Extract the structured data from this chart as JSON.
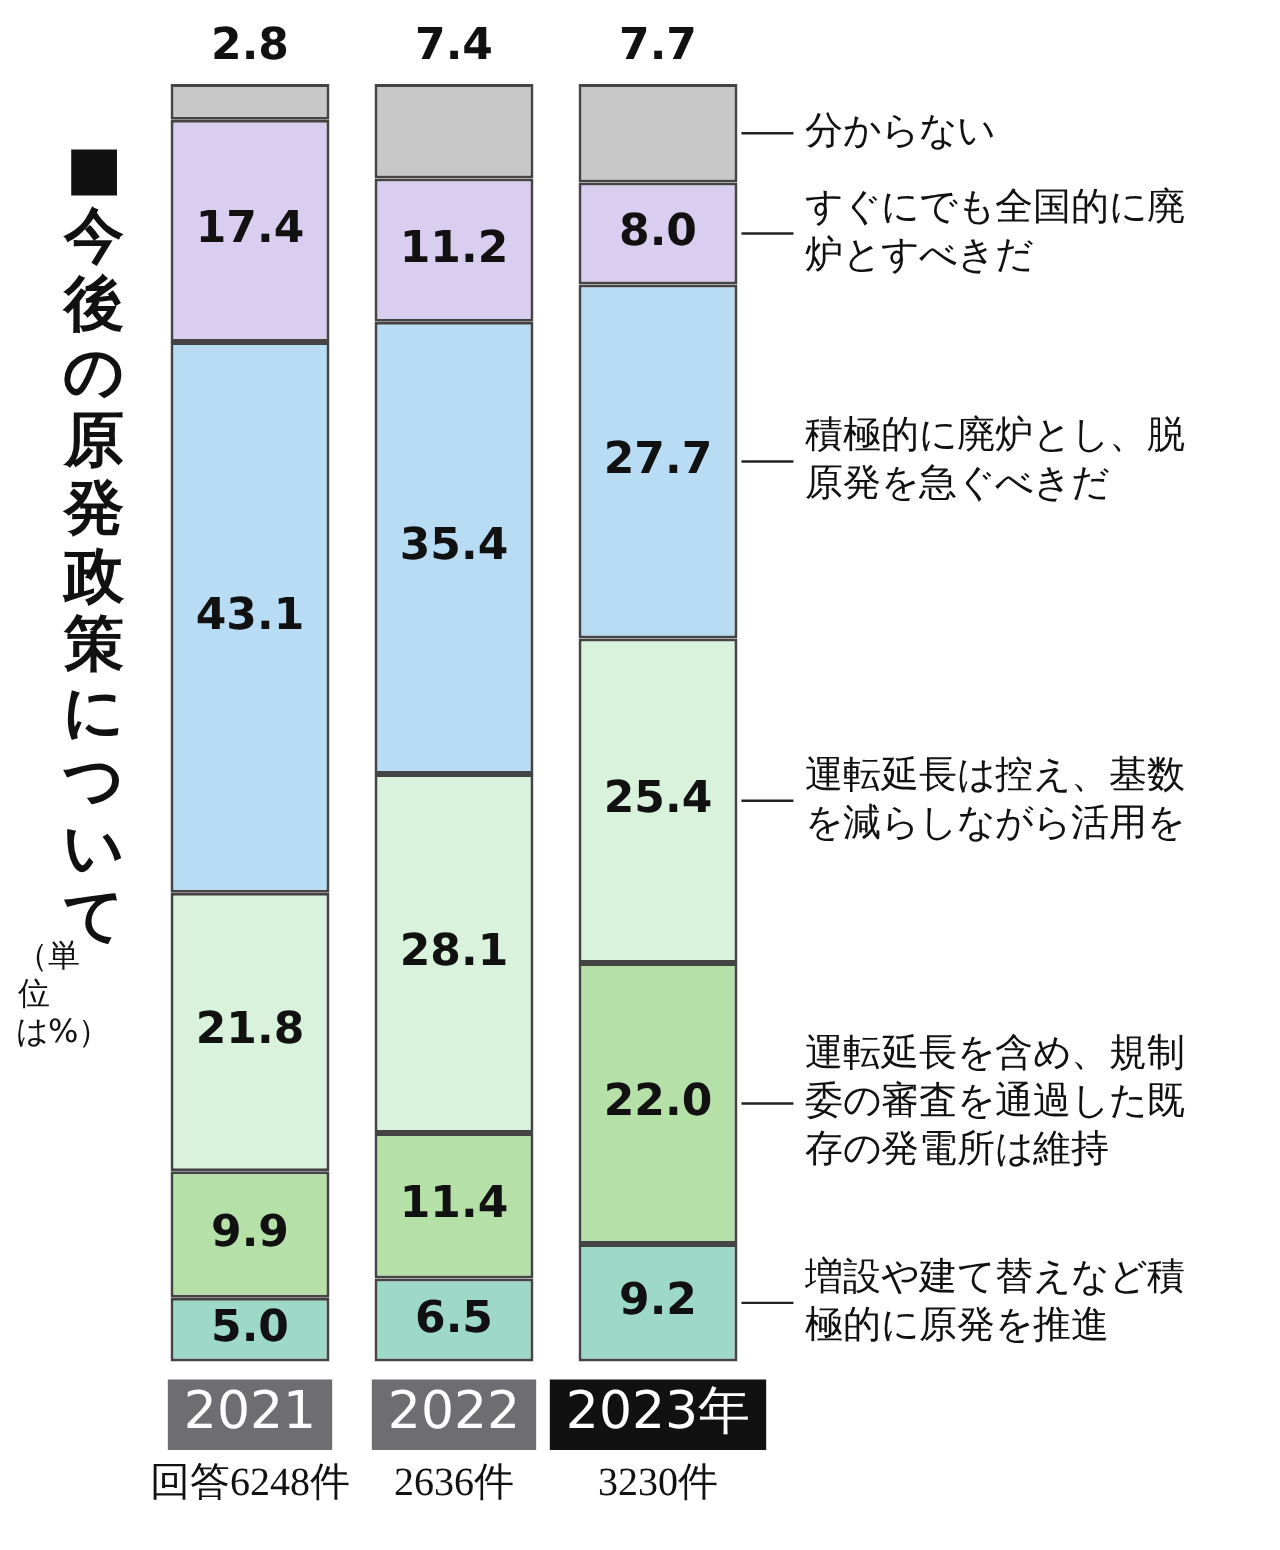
{
  "chart_data": {
    "type": "bar",
    "stacked": true,
    "title": "■今後の原発政策について",
    "subtitle": "（単位は%）",
    "categories": [
      "2021",
      "2022",
      "2023年"
    ],
    "ylim": [
      0,
      100
    ],
    "tick_labels": "x",
    "grid": false,
    "legend": false,
    "series": [
      {
        "name": "増設や建て替えなど積極的に原発を推進",
        "color": "#9ed9c8",
        "values": [
          5.0,
          6.5,
          9.2
        ],
        "value_labels": [
          "5.0",
          "6.5",
          "9.2"
        ]
      },
      {
        "name": "運転延長を含め、規制委の審査を通過した既存の発電所は維持",
        "color": "#b5e0a8",
        "values": [
          9.9,
          11.4,
          22.0
        ],
        "value_labels": [
          "9.9",
          "11.4",
          "22.0"
        ]
      },
      {
        "name": "運転延長は控え、基数を減らしながら活用を",
        "color": "#d9f2dc",
        "values": [
          21.8,
          28.1,
          25.4
        ],
        "value_labels": [
          "21.8",
          "28.1",
          "25.4"
        ]
      },
      {
        "name": "積極的に廃炉とし、脱原発を急ぐべきだ",
        "color": "#b9dcf5",
        "values": [
          43.1,
          35.4,
          27.7
        ],
        "value_labels": [
          "43.1",
          "35.4",
          "27.7"
        ]
      },
      {
        "name": "すぐにでも全国的に廃炉とすべきだ",
        "color": "#d9cdf0",
        "values": [
          17.4,
          11.2,
          8.0
        ],
        "value_labels": [
          "17.4",
          "11.2",
          "8.0"
        ]
      },
      {
        "name": "分からない",
        "color": "#c8c8c8",
        "values": [
          2.8,
          7.4,
          7.7
        ],
        "value_labels": [
          "2.8",
          "7.4",
          "7.7"
        ]
      }
    ],
    "annotations": [
      "回答6248件",
      "2636件",
      "3230件"
    ]
  }
}
